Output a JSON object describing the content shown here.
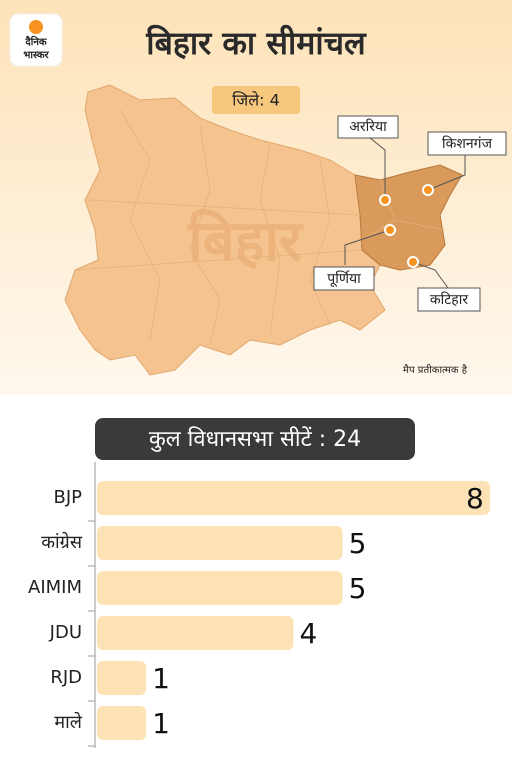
{
  "header": {
    "logo": [
      "दैनिक",
      "भास्कर"
    ],
    "title": "बिहार का सीमांचल"
  },
  "map": {
    "badge": "जिले: 4",
    "watermark": "बिहार",
    "districts": [
      "अररिया",
      "किशनगंज",
      "पूर्णिया",
      "कटिहार"
    ],
    "note": "मैप प्रतीकात्मक है"
  },
  "chart_data": {
    "type": "bar",
    "orientation": "horizontal",
    "title": "कुल विधानसभा सीटें : 24",
    "categories": [
      "BJP",
      "कांग्रेस",
      "AIMIM",
      "JDU",
      "RJD",
      "माले"
    ],
    "values": [
      8,
      5,
      5,
      4,
      1,
      1
    ],
    "color": "#fde2b6"
  }
}
